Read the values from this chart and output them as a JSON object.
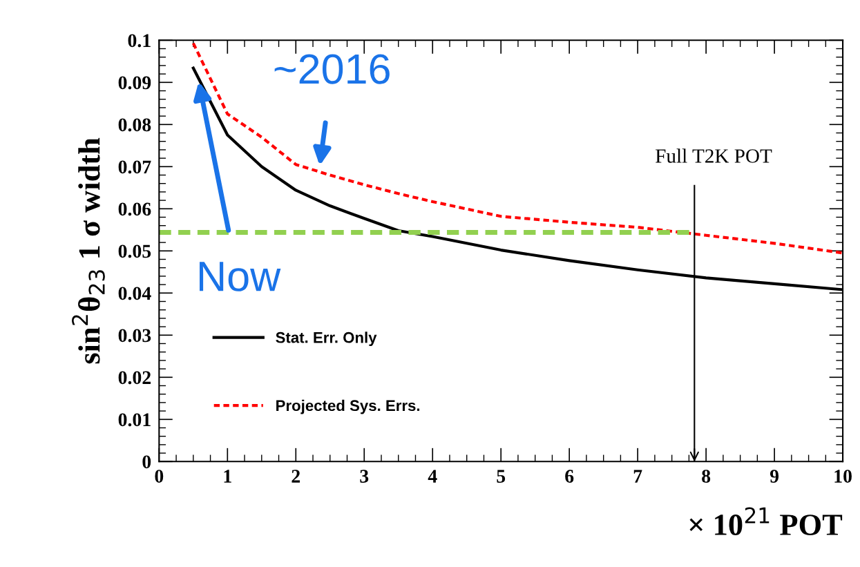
{
  "chart_data": {
    "type": "line",
    "xlabel": "× 10$^{21}$ POT",
    "ylabel": "sin$^{2}$θ$_{23}$ 1 σ width",
    "series": [
      {
        "name": "Stat. Err. Only",
        "color": "#000000",
        "line_style": "solid",
        "x": [
          0.5,
          1,
          1.5,
          2,
          2.5,
          3,
          3.5,
          4,
          5,
          6,
          7,
          8,
          9,
          10
        ],
        "values": [
          0.0934,
          0.0775,
          0.07,
          0.0644,
          0.0607,
          0.0577,
          0.0548,
          0.0534,
          0.0502,
          0.0477,
          0.0455,
          0.0436,
          0.0422,
          0.0408
        ]
      },
      {
        "name": "Projected Sys. Errs.",
        "color": "#ff0000",
        "line_style": "dashed",
        "x": [
          0.5,
          1,
          1.5,
          2,
          2.5,
          3,
          3.5,
          4,
          5,
          6,
          7,
          8,
          9,
          10
        ],
        "values": [
          0.0993,
          0.0825,
          0.077,
          0.0705,
          0.068,
          0.0657,
          0.0636,
          0.0617,
          0.0582,
          0.0568,
          0.0556,
          0.0537,
          0.0518,
          0.0495
        ]
      },
      {
        "color": "#92d050",
        "line_style": "dashed",
        "x": [
          0,
          7.8
        ],
        "values": [
          0.0544,
          0.0544
        ]
      }
    ],
    "annotations": [
      "~2016",
      "Now"
    ],
    "ref_lines": [
      {
        "axis": "x",
        "value": 7.83,
        "label": "Full T2K POT",
        "color": "#000000"
      }
    ],
    "xlim": [
      0,
      10
    ],
    "xticks": [
      0,
      1,
      2,
      3,
      4,
      5,
      6,
      7,
      8,
      9,
      10
    ],
    "ylim": [
      0,
      0.1
    ],
    "yticks": [
      0,
      0.01,
      0.02,
      0.03,
      0.04,
      0.05,
      0.06,
      0.07,
      0.08,
      0.09,
      0.1
    ],
    "legend": "bottom left",
    "grid": false,
    "marker": "none"
  }
}
